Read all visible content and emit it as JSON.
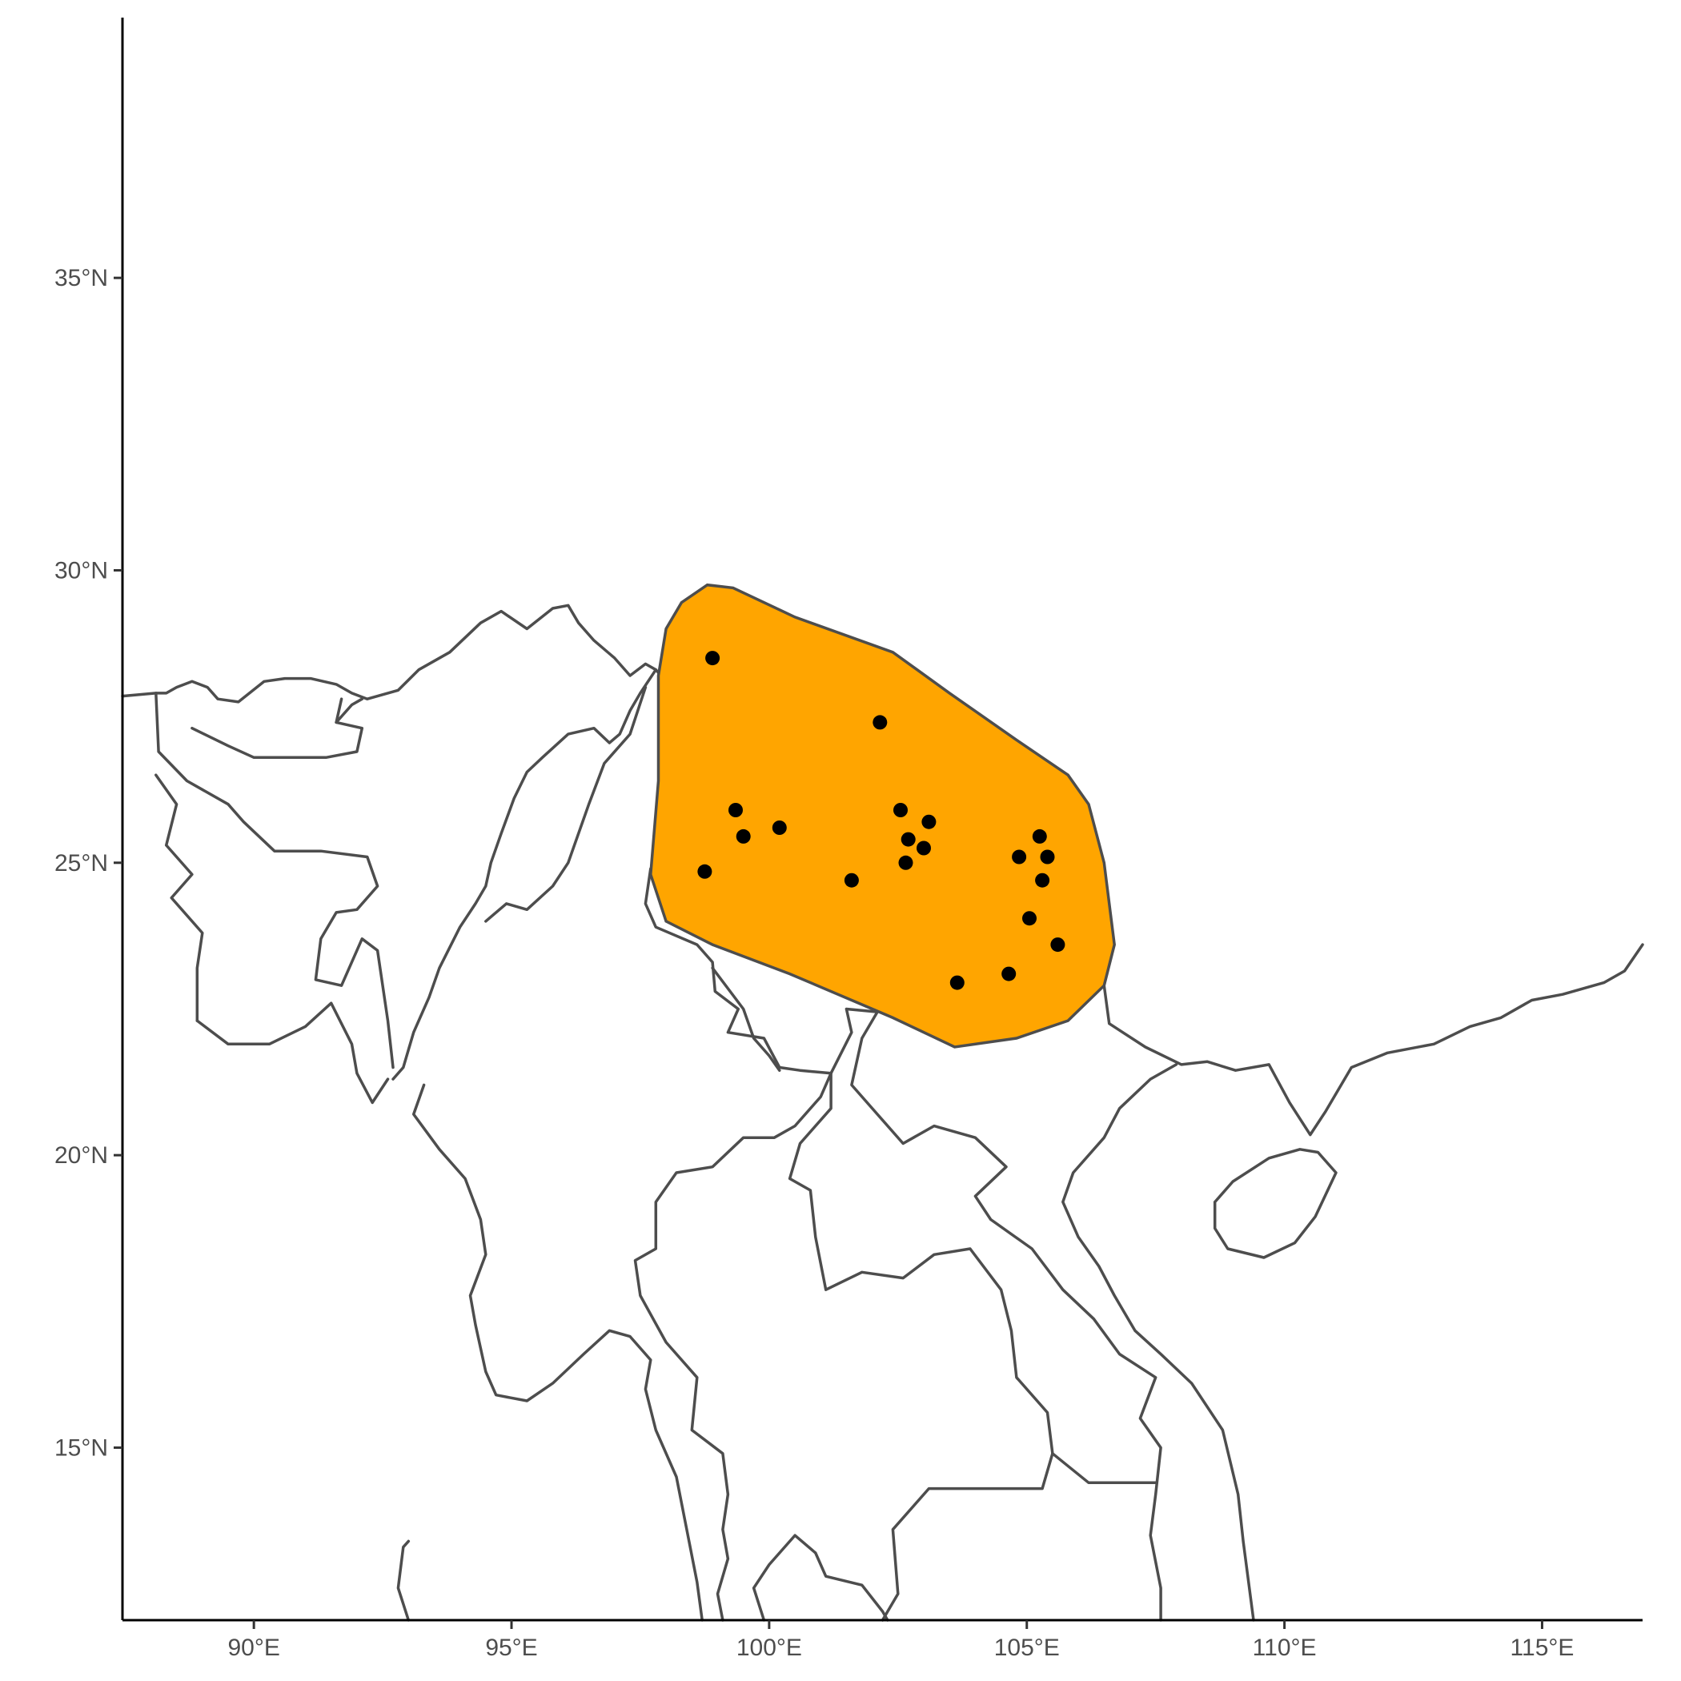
{
  "map": {
    "x_ticks": [
      "90°E",
      "95°E",
      "100°E",
      "105°E",
      "110°E",
      "115°E"
    ],
    "y_ticks": [
      "15°N",
      "20°N",
      "25°N",
      "30°N",
      "35°N"
    ],
    "x_tick_values": [
      90,
      95,
      100,
      105,
      110,
      115
    ],
    "y_tick_values": [
      15,
      20,
      25,
      30,
      35
    ],
    "lon_range": [
      87.45,
      116.95
    ],
    "lat_range": [
      12.05,
      39.45
    ],
    "colors": {
      "range_fill": "#FFA500",
      "outline": "#4d4d4d",
      "points": "#000000"
    }
  },
  "chart_data": {
    "type": "scatter",
    "title": "",
    "xlabel": "",
    "ylabel": "",
    "xlim": [
      87.45,
      116.95
    ],
    "ylim": [
      12.05,
      39.45
    ],
    "grid": false,
    "x_ticks": [
      "90°E",
      "95°E",
      "100°E",
      "105°E",
      "110°E",
      "115°E"
    ],
    "y_ticks": [
      "15°N",
      "20°N",
      "25°N",
      "30°N",
      "35°N"
    ],
    "range_polygon": [
      [
        97.85,
        28.2
      ],
      [
        98.0,
        29.0
      ],
      [
        98.3,
        29.45
      ],
      [
        98.8,
        29.75
      ],
      [
        99.3,
        29.7
      ],
      [
        100.5,
        29.2
      ],
      [
        102.4,
        28.6
      ],
      [
        103.5,
        27.9
      ],
      [
        104.8,
        27.1
      ],
      [
        105.8,
        26.5
      ],
      [
        106.2,
        26.0
      ],
      [
        106.5,
        25.0
      ],
      [
        106.7,
        23.6
      ],
      [
        106.5,
        22.9
      ],
      [
        105.8,
        22.3
      ],
      [
        104.8,
        22.0
      ],
      [
        103.6,
        21.85
      ],
      [
        102.4,
        22.35
      ],
      [
        100.4,
        23.1
      ],
      [
        98.9,
        23.6
      ],
      [
        98.0,
        24.0
      ],
      [
        97.7,
        24.8
      ],
      [
        97.85,
        26.4
      ]
    ],
    "points": [
      {
        "x": 98.9,
        "y": 28.5
      },
      {
        "x": 102.15,
        "y": 27.4
      },
      {
        "x": 99.35,
        "y": 25.9
      },
      {
        "x": 99.5,
        "y": 25.45
      },
      {
        "x": 100.2,
        "y": 25.6
      },
      {
        "x": 98.75,
        "y": 24.85
      },
      {
        "x": 101.6,
        "y": 24.7
      },
      {
        "x": 102.55,
        "y": 25.9
      },
      {
        "x": 103.1,
        "y": 25.7
      },
      {
        "x": 102.7,
        "y": 25.4
      },
      {
        "x": 103.0,
        "y": 25.25
      },
      {
        "x": 102.65,
        "y": 25.0
      },
      {
        "x": 105.25,
        "y": 25.45
      },
      {
        "x": 104.85,
        "y": 25.1
      },
      {
        "x": 105.4,
        "y": 25.1
      },
      {
        "x": 105.3,
        "y": 24.7
      },
      {
        "x": 105.05,
        "y": 24.05
      },
      {
        "x": 105.6,
        "y": 23.6
      },
      {
        "x": 103.65,
        "y": 22.95
      },
      {
        "x": 104.65,
        "y": 23.1
      }
    ],
    "coastlines": [
      [
        [
          87.45,
          27.85
        ],
        [
          88.1,
          27.9
        ],
        [
          88.3,
          27.9
        ],
        [
          88.5,
          28.0
        ],
        [
          88.8,
          28.1
        ],
        [
          89.1,
          28.0
        ],
        [
          89.3,
          27.8
        ],
        [
          89.7,
          27.75
        ],
        [
          90.2,
          28.1
        ],
        [
          90.6,
          28.15
        ],
        [
          91.1,
          28.15
        ],
        [
          91.6,
          28.05
        ],
        [
          91.9,
          27.9
        ],
        [
          92.2,
          27.8
        ],
        [
          92.8,
          27.95
        ],
        [
          93.2,
          28.3
        ],
        [
          93.8,
          28.6
        ],
        [
          94.4,
          29.1
        ],
        [
          94.8,
          29.3
        ],
        [
          95.3,
          29.0
        ],
        [
          95.8,
          29.35
        ],
        [
          96.1,
          29.4
        ],
        [
          96.3,
          29.1
        ],
        [
          96.6,
          28.8
        ],
        [
          97.0,
          28.5
        ],
        [
          97.3,
          28.2
        ],
        [
          97.6,
          28.4
        ],
        [
          97.8,
          28.3
        ],
        [
          97.5,
          27.9
        ],
        [
          97.3,
          27.6
        ],
        [
          97.1,
          27.2
        ],
        [
          96.9,
          27.05
        ],
        [
          96.6,
          27.3
        ],
        [
          96.1,
          27.2
        ],
        [
          95.6,
          26.8
        ],
        [
          95.3,
          26.55
        ],
        [
          95.05,
          26.1
        ],
        [
          94.8,
          25.5
        ],
        [
          94.6,
          25.0
        ],
        [
          94.5,
          24.6
        ],
        [
          94.3,
          24.3
        ],
        [
          94.0,
          23.9
        ],
        [
          93.6,
          23.2
        ],
        [
          93.4,
          22.7
        ],
        [
          93.1,
          22.1
        ],
        [
          92.9,
          21.5
        ],
        [
          92.7,
          21.3
        ]
      ],
      [
        [
          97.8,
          28.3
        ],
        [
          98.0,
          28.1
        ],
        [
          98.5,
          27.7
        ],
        [
          98.7,
          26.8
        ],
        [
          98.7,
          26.0
        ],
        [
          98.6,
          25.5
        ],
        [
          98.3,
          25.0
        ],
        [
          97.7,
          24.9
        ],
        [
          97.6,
          24.3
        ],
        [
          97.8,
          23.9
        ],
        [
          98.6,
          23.6
        ],
        [
          98.9,
          23.3
        ],
        [
          98.95,
          22.8
        ],
        [
          99.4,
          22.5
        ],
        [
          99.2,
          22.1
        ],
        [
          99.9,
          22.0
        ],
        [
          100.2,
          21.5
        ],
        [
          100.6,
          21.45
        ],
        [
          101.2,
          21.4
        ],
        [
          101.6,
          22.1
        ],
        [
          101.5,
          22.5
        ],
        [
          102.1,
          22.45
        ],
        [
          102.5,
          22.75
        ],
        [
          103.0,
          22.55
        ],
        [
          103.5,
          22.6
        ],
        [
          103.9,
          22.7
        ],
        [
          104.4,
          22.8
        ],
        [
          104.7,
          22.8
        ],
        [
          105.3,
          23.3
        ],
        [
          105.8,
          23.0
        ],
        [
          106.5,
          22.9
        ],
        [
          106.6,
          22.25
        ],
        [
          107.3,
          21.85
        ],
        [
          108.0,
          21.55
        ],
        [
          108.5,
          21.6
        ],
        [
          109.05,
          21.45
        ],
        [
          109.7,
          21.55
        ],
        [
          110.1,
          20.9
        ],
        [
          110.5,
          20.35
        ],
        [
          110.8,
          20.75
        ],
        [
          111.3,
          21.5
        ],
        [
          112.0,
          21.75
        ],
        [
          112.9,
          21.9
        ],
        [
          113.6,
          22.2
        ],
        [
          114.2,
          22.35
        ],
        [
          114.8,
          22.65
        ],
        [
          115.4,
          22.75
        ],
        [
          116.2,
          22.95
        ],
        [
          116.6,
          23.15
        ],
        [
          116.95,
          23.6
        ]
      ],
      [
        [
          108.65,
          19.2
        ],
        [
          109.0,
          19.55
        ],
        [
          109.7,
          19.95
        ],
        [
          110.3,
          20.1
        ],
        [
          110.65,
          20.05
        ],
        [
          111.0,
          19.7
        ],
        [
          110.6,
          18.95
        ],
        [
          110.2,
          18.5
        ],
        [
          109.6,
          18.25
        ],
        [
          108.9,
          18.4
        ],
        [
          108.65,
          18.75
        ],
        [
          108.65,
          19.2
        ]
      ],
      [
        [
          107.9,
          21.55
        ],
        [
          107.4,
          21.3
        ],
        [
          106.8,
          20.8
        ],
        [
          106.5,
          20.3
        ],
        [
          105.9,
          19.7
        ],
        [
          105.7,
          19.2
        ],
        [
          106.0,
          18.6
        ],
        [
          106.4,
          18.1
        ],
        [
          106.7,
          17.6
        ],
        [
          107.1,
          17.0
        ],
        [
          107.6,
          16.6
        ],
        [
          108.2,
          16.1
        ],
        [
          108.8,
          15.3
        ],
        [
          109.1,
          14.2
        ],
        [
          109.2,
          13.4
        ],
        [
          109.4,
          12.05
        ]
      ],
      [
        [
          93.3,
          21.2
        ],
        [
          93.1,
          20.7
        ],
        [
          93.6,
          20.1
        ],
        [
          94.1,
          19.6
        ],
        [
          94.4,
          18.9
        ],
        [
          94.5,
          18.3
        ],
        [
          94.2,
          17.6
        ],
        [
          94.3,
          17.1
        ],
        [
          94.5,
          16.3
        ],
        [
          94.7,
          15.9
        ],
        [
          95.3,
          15.8
        ],
        [
          95.8,
          16.1
        ],
        [
          96.4,
          16.6
        ],
        [
          96.9,
          17.0
        ],
        [
          97.3,
          16.9
        ],
        [
          97.7,
          16.5
        ],
        [
          97.6,
          16.0
        ],
        [
          97.8,
          15.3
        ],
        [
          98.2,
          14.5
        ],
        [
          98.4,
          13.6
        ],
        [
          98.6,
          12.7
        ],
        [
          98.7,
          12.05
        ]
      ],
      [
        [
          99.9,
          12.05
        ],
        [
          99.7,
          12.6
        ],
        [
          100.0,
          13.0
        ],
        [
          100.5,
          13.5
        ],
        [
          100.9,
          13.2
        ],
        [
          101.1,
          12.8
        ],
        [
          101.8,
          12.65
        ],
        [
          102.2,
          12.2
        ],
        [
          102.3,
          12.05
        ]
      ],
      [
        [
          93.0,
          12.05
        ],
        [
          92.8,
          12.6
        ],
        [
          92.9,
          13.3
        ],
        [
          93.0,
          13.4
        ]
      ]
    ],
    "borders": [
      [
        [
          88.1,
          27.9
        ],
        [
          88.15,
          26.9
        ],
        [
          88.7,
          26.4
        ],
        [
          89.5,
          26.0
        ],
        [
          89.8,
          25.7
        ],
        [
          90.4,
          25.2
        ],
        [
          91.3,
          25.2
        ],
        [
          92.2,
          25.1
        ],
        [
          92.4,
          24.6
        ],
        [
          92.0,
          24.2
        ],
        [
          91.6,
          24.15
        ],
        [
          91.3,
          23.7
        ],
        [
          91.2,
          23.0
        ],
        [
          91.7,
          22.9
        ],
        [
          92.1,
          23.7
        ],
        [
          92.4,
          23.5
        ],
        [
          92.6,
          22.3
        ],
        [
          92.7,
          21.5
        ]
      ],
      [
        [
          88.1,
          26.5
        ],
        [
          88.5,
          26.0
        ],
        [
          88.3,
          25.3
        ],
        [
          88.8,
          24.8
        ],
        [
          88.4,
          24.4
        ],
        [
          89.0,
          23.8
        ],
        [
          88.9,
          23.2
        ],
        [
          88.9,
          22.3
        ]
      ],
      [
        [
          88.9,
          22.3
        ],
        [
          89.5,
          21.9
        ],
        [
          90.3,
          21.9
        ],
        [
          91.0,
          22.2
        ],
        [
          91.5,
          22.6
        ],
        [
          91.9,
          21.9
        ],
        [
          92.0,
          21.4
        ],
        [
          92.3,
          20.9
        ],
        [
          92.6,
          21.3
        ]
      ],
      [
        [
          88.8,
          27.3
        ],
        [
          89.5,
          27.0
        ],
        [
          90.0,
          26.8
        ],
        [
          90.6,
          26.8
        ],
        [
          91.4,
          26.8
        ],
        [
          92.0,
          26.9
        ],
        [
          92.1,
          27.3
        ],
        [
          91.6,
          27.4
        ],
        [
          91.7,
          27.8
        ]
      ],
      [
        [
          91.6,
          27.4
        ],
        [
          91.9,
          27.7
        ],
        [
          92.1,
          27.8
        ]
      ],
      [
        [
          94.5,
          24.0
        ],
        [
          94.9,
          24.3
        ],
        [
          95.3,
          24.2
        ],
        [
          95.8,
          24.6
        ],
        [
          96.1,
          25.0
        ],
        [
          96.5,
          26.0
        ],
        [
          96.8,
          26.7
        ],
        [
          97.3,
          27.2
        ],
        [
          97.6,
          28.0
        ]
      ],
      [
        [
          98.9,
          23.2
        ],
        [
          99.5,
          22.5
        ],
        [
          99.7,
          22.0
        ],
        [
          100.0,
          21.7
        ],
        [
          100.2,
          21.45
        ]
      ],
      [
        [
          101.2,
          21.4
        ],
        [
          101.0,
          21.0
        ],
        [
          100.5,
          20.5
        ],
        [
          100.1,
          20.3
        ],
        [
          99.5,
          20.3
        ],
        [
          98.9,
          19.8
        ],
        [
          98.2,
          19.7
        ],
        [
          97.8,
          19.2
        ],
        [
          97.8,
          18.4
        ],
        [
          97.4,
          18.2
        ],
        [
          97.5,
          17.6
        ],
        [
          98.0,
          16.8
        ],
        [
          98.6,
          16.2
        ],
        [
          98.5,
          15.3
        ],
        [
          99.1,
          14.9
        ],
        [
          99.2,
          14.2
        ],
        [
          99.1,
          13.6
        ],
        [
          99.2,
          13.1
        ],
        [
          99.0,
          12.5
        ],
        [
          99.1,
          12.05
        ]
      ],
      [
        [
          101.2,
          21.4
        ],
        [
          101.2,
          20.8
        ],
        [
          100.6,
          20.2
        ],
        [
          100.4,
          19.6
        ],
        [
          100.8,
          19.4
        ],
        [
          100.9,
          18.6
        ],
        [
          101.1,
          17.7
        ],
        [
          101.8,
          18.0
        ],
        [
          102.6,
          17.9
        ],
        [
          103.2,
          18.3
        ],
        [
          103.9,
          18.4
        ],
        [
          104.5,
          17.7
        ],
        [
          104.7,
          17.0
        ],
        [
          104.8,
          16.2
        ],
        [
          105.4,
          15.6
        ],
        [
          105.5,
          14.9
        ],
        [
          105.3,
          14.3
        ],
        [
          104.2,
          14.3
        ],
        [
          103.1,
          14.3
        ],
        [
          102.4,
          13.6
        ],
        [
          102.5,
          12.5
        ],
        [
          102.2,
          12.05
        ]
      ],
      [
        [
          102.1,
          22.45
        ],
        [
          101.8,
          22.0
        ],
        [
          101.6,
          21.2
        ],
        [
          102.1,
          20.7
        ],
        [
          102.6,
          20.2
        ],
        [
          103.2,
          20.5
        ],
        [
          104.0,
          20.3
        ],
        [
          104.6,
          19.8
        ],
        [
          104.0,
          19.3
        ],
        [
          104.3,
          18.9
        ],
        [
          105.1,
          18.4
        ],
        [
          105.7,
          17.7
        ],
        [
          106.3,
          17.2
        ],
        [
          106.8,
          16.6
        ],
        [
          107.5,
          16.2
        ],
        [
          107.2,
          15.5
        ],
        [
          107.6,
          15.0
        ],
        [
          107.5,
          14.2
        ],
        [
          107.4,
          13.5
        ],
        [
          107.6,
          12.6
        ],
        [
          107.6,
          12.05
        ]
      ],
      [
        [
          105.5,
          14.9
        ],
        [
          106.2,
          14.4
        ],
        [
          106.8,
          14.4
        ],
        [
          107.5,
          14.4
        ]
      ]
    ]
  }
}
